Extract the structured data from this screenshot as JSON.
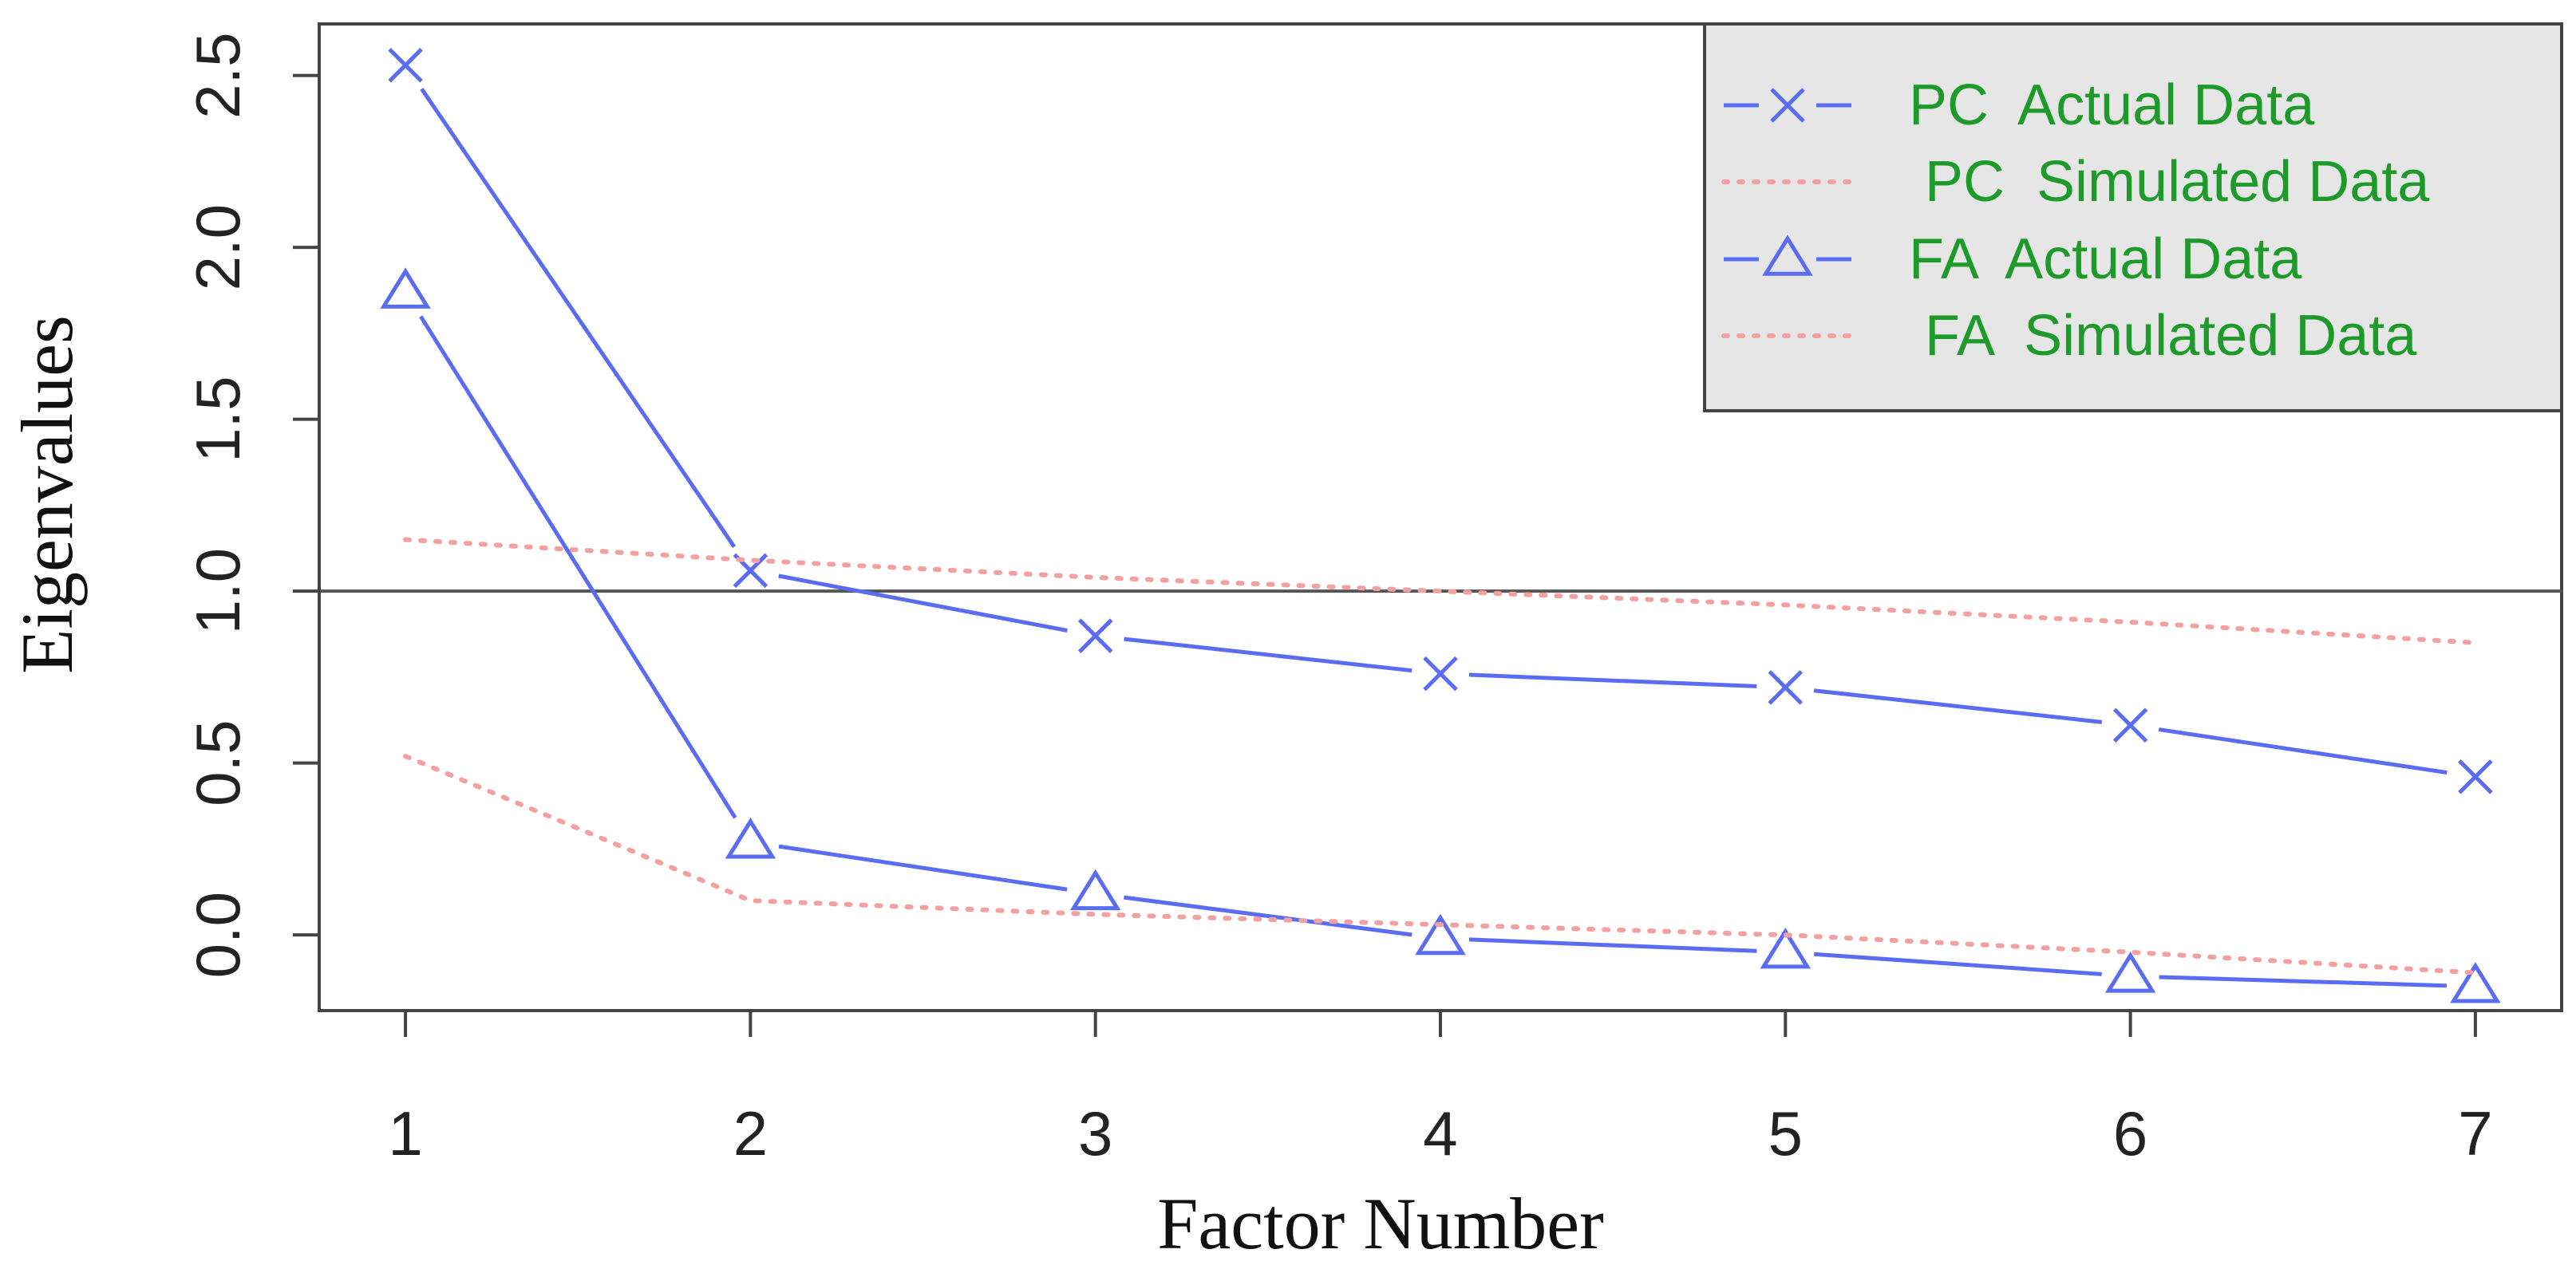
{
  "chart_data": {
    "type": "line",
    "xlabel": "Factor Number",
    "ylabel": "Eigenvalues",
    "x": [
      1,
      2,
      3,
      4,
      5,
      6,
      7
    ],
    "x_ticks": [
      "1",
      "2",
      "3",
      "4",
      "5",
      "6",
      "7"
    ],
    "y_ticks": [
      "0.0",
      "0.5",
      "1.0",
      "1.5",
      "2.0",
      "2.5"
    ],
    "ylim": [
      -0.22,
      2.65
    ],
    "xlim": [
      0.75,
      7.25
    ],
    "reference_line": 1.0,
    "grid": false,
    "legend_position": "top-right",
    "series": [
      {
        "name": "PC  Actual Data",
        "values": [
          2.53,
          1.06,
          0.87,
          0.76,
          0.72,
          0.61,
          0.46
        ],
        "style": "solid",
        "marker": "x",
        "color": "#5a6cf2"
      },
      {
        "name": " PC  Simulated Data",
        "values": [
          1.15,
          1.09,
          1.04,
          1.0,
          0.96,
          0.91,
          0.85
        ],
        "style": "dotted",
        "marker": "none",
        "color": "#f4a0a0"
      },
      {
        "name": "FA  Actual Data",
        "values": [
          1.87,
          0.27,
          0.12,
          -0.01,
          -0.05,
          -0.12,
          -0.15
        ],
        "style": "solid",
        "marker": "triangle",
        "color": "#5a6cf2"
      },
      {
        "name": " FA  Simulated Data",
        "values": [
          0.52,
          0.1,
          0.06,
          0.03,
          0.0,
          -0.05,
          -0.11
        ],
        "style": "dotted",
        "marker": "none",
        "color": "#f4a0a0"
      }
    ],
    "colors": {
      "legend_text": "#1e9a2a",
      "legend_background": "#e6e6e6",
      "reference_line": "#555555"
    }
  }
}
